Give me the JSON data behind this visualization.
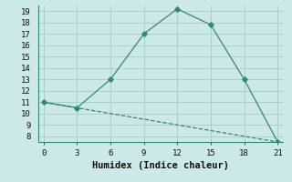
{
  "line1_x": [
    0,
    3,
    6,
    9,
    12,
    15,
    18,
    21
  ],
  "line1_y": [
    11,
    10.5,
    13,
    17,
    19.2,
    17.8,
    13,
    7.5
  ],
  "line2_x": [
    0,
    21
  ],
  "line2_y": [
    11,
    7.5
  ],
  "line_color": "#2e8b7a",
  "bg_color": "#cce8e8",
  "grid_color": "#aacfcf",
  "xlabel": "Humidex (Indice chaleur)",
  "xlim": [
    -0.5,
    21.5
  ],
  "ylim": [
    7.5,
    19.5
  ],
  "xticks": [
    0,
    3,
    6,
    9,
    12,
    15,
    18,
    21
  ],
  "yticks": [
    8,
    9,
    10,
    11,
    12,
    13,
    14,
    15,
    16,
    17,
    18,
    19
  ],
  "font_family": "monospace",
  "tick_fontsize": 6.5,
  "xlabel_fontsize": 7.5
}
